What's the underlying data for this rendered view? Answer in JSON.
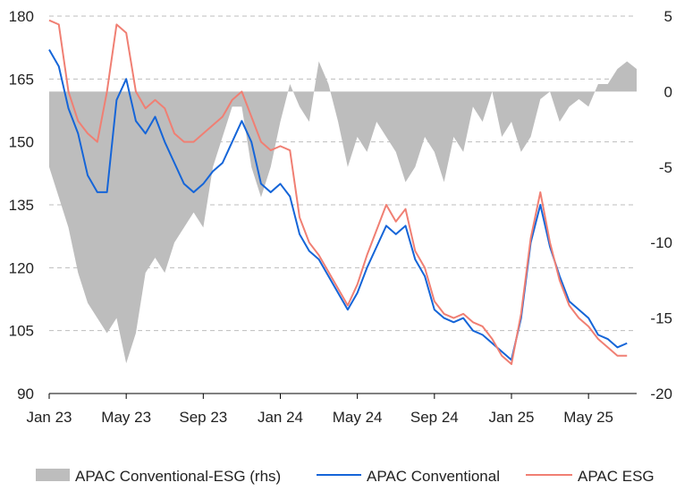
{
  "chart_data": {
    "type": "line",
    "title": "",
    "xlabel": "",
    "ylabel": "",
    "x_ticks": [
      "Jan 23",
      "May 23",
      "Sep 23",
      "Jan 24",
      "May 24",
      "Sep 24",
      "Jan 25",
      "May 25"
    ],
    "y_left": {
      "min": 90,
      "max": 180,
      "ticks": [
        90,
        105,
        120,
        135,
        150,
        165,
        180
      ]
    },
    "y_right": {
      "min": -20,
      "max": 5,
      "ticks": [
        -20,
        -15,
        -10,
        -5,
        0,
        5
      ],
      "label": "rhs"
    },
    "grid": "horizontal dashed",
    "legend_position": "bottom",
    "x_range": [
      "2023-01",
      "2025-07"
    ],
    "series": [
      {
        "name": "APAC Conventional-ESG (rhs)",
        "type": "area",
        "axis": "right",
        "color": "#bdbdbd",
        "values": [
          [
            0,
            -5
          ],
          [
            0.5,
            -7
          ],
          [
            1,
            -9
          ],
          [
            1.5,
            -12
          ],
          [
            2,
            -14
          ],
          [
            2.5,
            -15
          ],
          [
            3,
            -16
          ],
          [
            3.5,
            -15
          ],
          [
            4,
            -18
          ],
          [
            4.5,
            -16
          ],
          [
            5,
            -12
          ],
          [
            5.5,
            -11
          ],
          [
            6,
            -12
          ],
          [
            6.5,
            -10
          ],
          [
            7,
            -9
          ],
          [
            7.5,
            -8
          ],
          [
            8,
            -9
          ],
          [
            8.5,
            -5
          ],
          [
            9,
            -3
          ],
          [
            9.5,
            -1
          ],
          [
            10,
            -1
          ],
          [
            10.5,
            -5
          ],
          [
            11,
            -7
          ],
          [
            11.5,
            -5
          ],
          [
            12,
            -2
          ],
          [
            12.5,
            0.5
          ],
          [
            13,
            -1
          ],
          [
            13.5,
            -2
          ],
          [
            14,
            2
          ],
          [
            14.5,
            0.5
          ],
          [
            15,
            -2
          ],
          [
            15.5,
            -5
          ],
          [
            16,
            -3
          ],
          [
            16.5,
            -4
          ],
          [
            17,
            -2
          ],
          [
            17.5,
            -3
          ],
          [
            18,
            -4
          ],
          [
            18.5,
            -6
          ],
          [
            19,
            -5
          ],
          [
            19.5,
            -3
          ],
          [
            20,
            -4
          ],
          [
            20.5,
            -6
          ],
          [
            21,
            -3
          ],
          [
            21.5,
            -4
          ],
          [
            22,
            -1
          ],
          [
            22.5,
            -2
          ],
          [
            23,
            0
          ],
          [
            23.5,
            -3
          ],
          [
            24,
            -2
          ],
          [
            24.5,
            -4
          ],
          [
            25,
            -3
          ],
          [
            25.5,
            -0.5
          ],
          [
            26,
            0
          ],
          [
            26.5,
            -2
          ],
          [
            27,
            -1
          ],
          [
            27.5,
            -0.5
          ],
          [
            28,
            -1
          ],
          [
            28.5,
            0.5
          ],
          [
            29,
            0.5
          ],
          [
            29.5,
            1.5
          ],
          [
            30,
            2
          ],
          [
            30.5,
            1.5
          ]
        ]
      },
      {
        "name": "APAC Conventional",
        "type": "line",
        "axis": "left",
        "color": "#1565d8",
        "values": [
          [
            0,
            172
          ],
          [
            0.5,
            168
          ],
          [
            1,
            158
          ],
          [
            1.5,
            152
          ],
          [
            2,
            142
          ],
          [
            2.5,
            138
          ],
          [
            3,
            138
          ],
          [
            3.5,
            160
          ],
          [
            4,
            165
          ],
          [
            4.5,
            155
          ],
          [
            5,
            152
          ],
          [
            5.5,
            156
          ],
          [
            6,
            150
          ],
          [
            6.5,
            145
          ],
          [
            7,
            140
          ],
          [
            7.5,
            138
          ],
          [
            8,
            140
          ],
          [
            8.5,
            143
          ],
          [
            9,
            145
          ],
          [
            9.5,
            150
          ],
          [
            10,
            155
          ],
          [
            10.5,
            150
          ],
          [
            11,
            140
          ],
          [
            11.5,
            138
          ],
          [
            12,
            140
          ],
          [
            12.5,
            137
          ],
          [
            13,
            128
          ],
          [
            13.5,
            124
          ],
          [
            14,
            122
          ],
          [
            14.5,
            118
          ],
          [
            15,
            114
          ],
          [
            15.5,
            110
          ],
          [
            16,
            114
          ],
          [
            16.5,
            120
          ],
          [
            17,
            125
          ],
          [
            17.5,
            130
          ],
          [
            18,
            128
          ],
          [
            18.5,
            130
          ],
          [
            19,
            122
          ],
          [
            19.5,
            118
          ],
          [
            20,
            110
          ],
          [
            20.5,
            108
          ],
          [
            21,
            107
          ],
          [
            21.5,
            108
          ],
          [
            22,
            105
          ],
          [
            22.5,
            104
          ],
          [
            23,
            102
          ],
          [
            23.5,
            100
          ],
          [
            24,
            98
          ],
          [
            24.5,
            108
          ],
          [
            25,
            126
          ],
          [
            25.5,
            135
          ],
          [
            26,
            125
          ],
          [
            26.5,
            118
          ],
          [
            27,
            112
          ],
          [
            27.5,
            110
          ],
          [
            28,
            108
          ],
          [
            28.5,
            104
          ],
          [
            29,
            103
          ],
          [
            29.5,
            101
          ],
          [
            30,
            102
          ]
        ]
      },
      {
        "name": "APAC ESG",
        "type": "line",
        "axis": "left",
        "color": "#f07f73",
        "values": [
          [
            0,
            179
          ],
          [
            0.5,
            178
          ],
          [
            1,
            162
          ],
          [
            1.5,
            155
          ],
          [
            2,
            152
          ],
          [
            2.5,
            150
          ],
          [
            3,
            162
          ],
          [
            3.5,
            178
          ],
          [
            4,
            176
          ],
          [
            4.5,
            162
          ],
          [
            5,
            158
          ],
          [
            5.5,
            160
          ],
          [
            6,
            158
          ],
          [
            6.5,
            152
          ],
          [
            7,
            150
          ],
          [
            7.5,
            150
          ],
          [
            8,
            152
          ],
          [
            8.5,
            154
          ],
          [
            9,
            156
          ],
          [
            9.5,
            160
          ],
          [
            10,
            162
          ],
          [
            10.5,
            156
          ],
          [
            11,
            150
          ],
          [
            11.5,
            148
          ],
          [
            12,
            149
          ],
          [
            12.5,
            148
          ],
          [
            13,
            132
          ],
          [
            13.5,
            126
          ],
          [
            14,
            123
          ],
          [
            14.5,
            119
          ],
          [
            15,
            115
          ],
          [
            15.5,
            111
          ],
          [
            16,
            116
          ],
          [
            16.5,
            123
          ],
          [
            17,
            129
          ],
          [
            17.5,
            135
          ],
          [
            18,
            131
          ],
          [
            18.5,
            134
          ],
          [
            19,
            124
          ],
          [
            19.5,
            120
          ],
          [
            20,
            112
          ],
          [
            20.5,
            109
          ],
          [
            21,
            108
          ],
          [
            21.5,
            109
          ],
          [
            22,
            107
          ],
          [
            22.5,
            106
          ],
          [
            23,
            103
          ],
          [
            23.5,
            99
          ],
          [
            24,
            97
          ],
          [
            24.5,
            109
          ],
          [
            25,
            127
          ],
          [
            25.5,
            138
          ],
          [
            26,
            126
          ],
          [
            26.5,
            117
          ],
          [
            27,
            111
          ],
          [
            27.5,
            108
          ],
          [
            28,
            106
          ],
          [
            28.5,
            103
          ],
          [
            29,
            101
          ],
          [
            29.5,
            99
          ],
          [
            30,
            99
          ]
        ]
      }
    ]
  },
  "legend": {
    "items": [
      {
        "label": "APAC Conventional-ESG (rhs)",
        "color": "#bdbdbd",
        "style": "area"
      },
      {
        "label": "APAC Conventional",
        "color": "#1565d8",
        "style": "line"
      },
      {
        "label": "APAC ESG",
        "color": "#f07f73",
        "style": "line"
      }
    ]
  }
}
